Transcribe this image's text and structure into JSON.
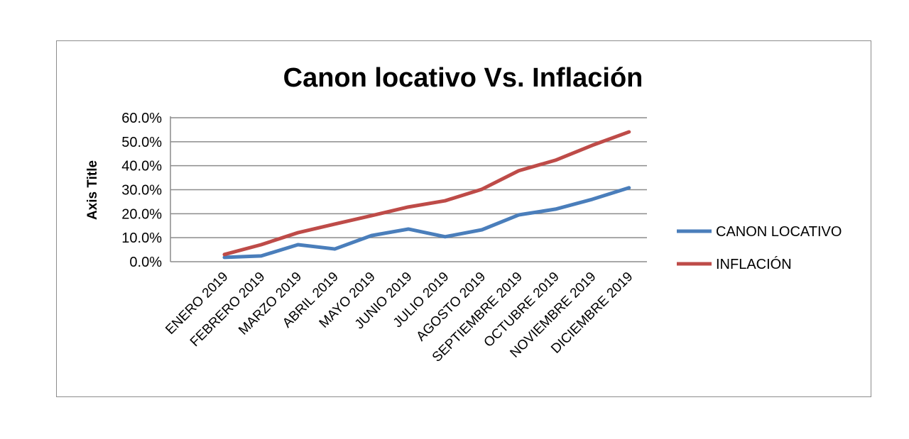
{
  "chart_data": {
    "type": "line",
    "title": "Canon locativo Vs. Inflación",
    "xlabel": "",
    "ylabel": "Axis Title",
    "ylim": [
      0,
      60
    ],
    "yticks": [
      "0.0%",
      "10.0%",
      "20.0%",
      "30.0%",
      "40.0%",
      "50.0%",
      "60.0%"
    ],
    "grid": true,
    "legend": "right",
    "categories": [
      "ENERO 2019",
      "FEBRERO 2019",
      "MARZO 2019",
      "ABRIL 2019",
      "MAYO 2019",
      "JUNIO 2019",
      "JULIO 2019",
      "AGOSTO 2019",
      "SEPTIEMBRE 2019",
      "OCTUBRE 2019",
      "NOVIEMBRE 2019",
      "DICIEMBRE 2019"
    ],
    "series": [
      {
        "name": "CANON LOCATIVO",
        "color": "#4a7ebb",
        "values": [
          1.8,
          2.4,
          7.1,
          5.3,
          10.9,
          13.6,
          10.4,
          13.3,
          19.5,
          21.9,
          26.0,
          30.8
        ]
      },
      {
        "name": "INFLACIÓN",
        "color": "#be4b48",
        "values": [
          3.0,
          7.1,
          12.1,
          15.7,
          19.2,
          22.8,
          25.4,
          30.2,
          37.9,
          42.3,
          48.5,
          54.1
        ]
      }
    ]
  }
}
